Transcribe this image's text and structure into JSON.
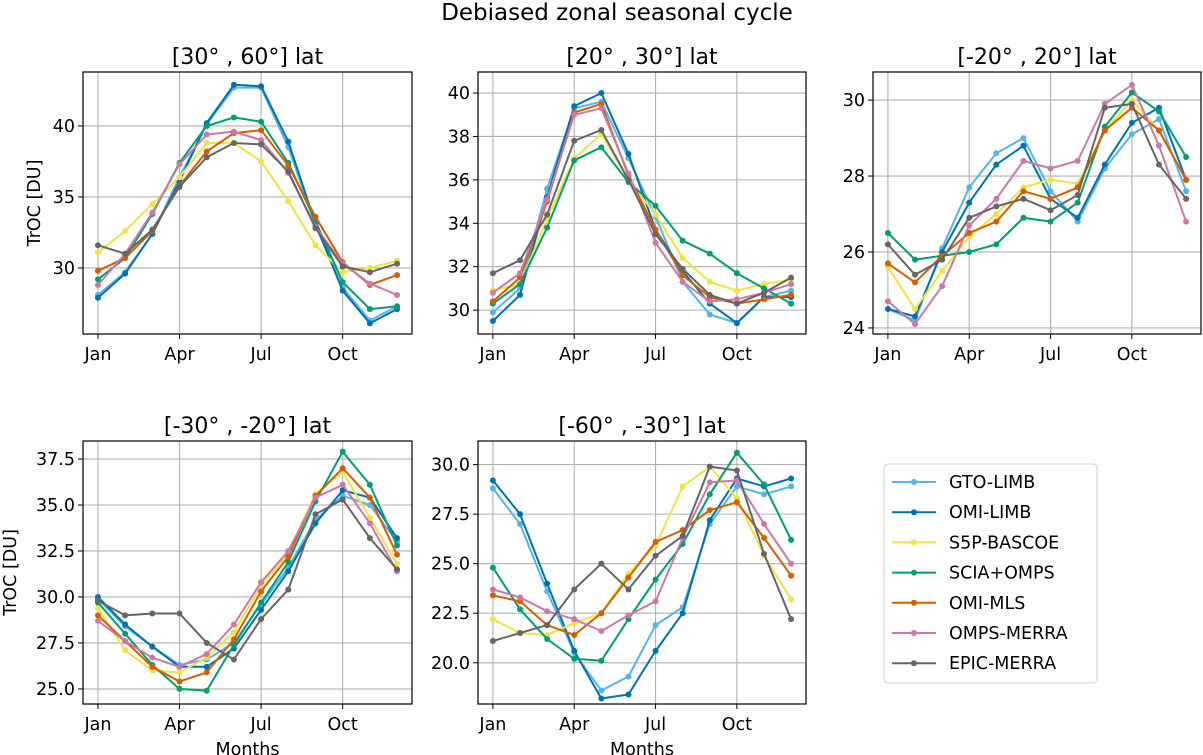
{
  "figure": {
    "suptitle": "Debiased zonal seasonal cycle"
  },
  "legend": {
    "placement": "lower-right empty cell",
    "entries": [
      {
        "name": "GTO-LIMB",
        "color": "#56b4e9"
      },
      {
        "name": "OMI-LIMB",
        "color": "#0072b2"
      },
      {
        "name": "S5P-BASCOE",
        "color": "#f0e442"
      },
      {
        "name": "SCIA+OMPS",
        "color": "#009e73"
      },
      {
        "name": "OMI-MLS",
        "color": "#d55e00"
      },
      {
        "name": "OMPS-MERRA",
        "color": "#cc79a7"
      },
      {
        "name": "EPIC-MERRA",
        "color": "#666666"
      }
    ]
  },
  "chart_data": [
    {
      "type": "line",
      "title": "[30° , 60°] lat",
      "xlabel": "",
      "ylabel": "TrOC [DU]",
      "x": [
        1,
        2,
        3,
        4,
        5,
        6,
        7,
        8,
        9,
        10,
        11,
        12
      ],
      "xticks": [
        1,
        4,
        7,
        10
      ],
      "xticklabels": [
        "Jan",
        "Apr",
        "Jul",
        "Oct"
      ],
      "xlim": [
        0.45,
        12.55
      ],
      "ylim": [
        25.35,
        43.8
      ],
      "yticks": [
        30,
        35,
        40
      ],
      "yticklabels": [
        "30",
        "35",
        "40"
      ],
      "grid": true,
      "series": [
        {
          "name": "GTO-LIMB",
          "values": [
            28.1,
            29.7,
            32.4,
            36.4,
            40.1,
            42.7,
            42.7,
            38.5,
            33.0,
            28.6,
            26.3,
            27.3
          ]
        },
        {
          "name": "OMI-LIMB",
          "values": [
            27.9,
            29.6,
            32.4,
            36.1,
            40.2,
            42.9,
            42.8,
            38.9,
            33.1,
            28.4,
            26.1,
            27.1
          ]
        },
        {
          "name": "S5P-BASCOE",
          "values": [
            31.1,
            32.6,
            34.5,
            36.4,
            38.8,
            38.8,
            37.5,
            34.7,
            31.6,
            29.7,
            30.0,
            30.5
          ]
        },
        {
          "name": "SCIA+OMPS",
          "values": [
            29.2,
            30.7,
            33.8,
            37.4,
            40.0,
            40.6,
            40.3,
            37.4,
            33.3,
            29.0,
            27.1,
            27.3
          ]
        },
        {
          "name": "OMI-MLS",
          "values": [
            29.8,
            30.7,
            32.6,
            35.8,
            38.2,
            39.5,
            39.7,
            37.2,
            33.6,
            30.4,
            28.8,
            29.5
          ]
        },
        {
          "name": "OMPS-MERRA",
          "values": [
            28.8,
            31.0,
            33.9,
            37.3,
            39.4,
            39.6,
            39.0,
            36.7,
            32.9,
            30.3,
            28.9,
            28.1
          ]
        },
        {
          "name": "EPIC-MERRA",
          "values": [
            31.6,
            31.0,
            32.7,
            35.7,
            37.8,
            38.8,
            38.7,
            36.8,
            32.8,
            30.1,
            29.7,
            30.3
          ]
        }
      ]
    },
    {
      "type": "line",
      "title": "[20° , 30°] lat",
      "xlabel": "",
      "ylabel": "",
      "x": [
        1,
        2,
        3,
        4,
        5,
        6,
        7,
        8,
        9,
        10,
        11,
        12
      ],
      "xticks": [
        1,
        4,
        7,
        10
      ],
      "xticklabels": [
        "Jan",
        "Apr",
        "Jul",
        "Oct"
      ],
      "xlim": [
        0.45,
        12.55
      ],
      "ylim": [
        28.9,
        40.97
      ],
      "yticks": [
        30,
        32,
        34,
        36,
        38,
        40
      ],
      "yticklabels": [
        "30",
        "32",
        "34",
        "36",
        "38",
        "40"
      ],
      "grid": true,
      "series": [
        {
          "name": "GTO-LIMB",
          "values": [
            29.9,
            31.0,
            35.6,
            39.3,
            39.6,
            37.0,
            34.3,
            31.3,
            29.8,
            29.4,
            30.6,
            30.9
          ]
        },
        {
          "name": "OMI-LIMB",
          "values": [
            29.5,
            30.7,
            35.2,
            39.4,
            40.0,
            37.2,
            33.7,
            31.8,
            30.3,
            29.4,
            30.6,
            30.6
          ]
        },
        {
          "name": "S5P-BASCOE",
          "values": [
            30.9,
            31.2,
            34.2,
            37.0,
            38.1,
            36.0,
            34.4,
            32.4,
            31.3,
            30.9,
            31.2,
            31.4
          ]
        },
        {
          "name": "SCIA+OMPS",
          "values": [
            30.3,
            31.2,
            33.8,
            36.9,
            37.5,
            35.9,
            34.8,
            33.2,
            32.6,
            31.7,
            31.0,
            30.3
          ]
        },
        {
          "name": "OMI-MLS",
          "values": [
            30.4,
            31.5,
            35.0,
            39.1,
            39.5,
            36.2,
            33.7,
            31.6,
            30.6,
            30.3,
            30.5,
            30.7
          ]
        },
        {
          "name": "OMPS-MERRA",
          "values": [
            30.8,
            31.7,
            35.1,
            39.0,
            39.3,
            36.3,
            33.1,
            31.3,
            30.4,
            30.5,
            30.8,
            31.2
          ]
        },
        {
          "name": "EPIC-MERRA",
          "values": [
            31.7,
            32.3,
            34.4,
            37.8,
            38.3,
            36.0,
            33.5,
            31.9,
            30.7,
            30.3,
            30.8,
            31.5
          ]
        }
      ]
    },
    {
      "type": "line",
      "title": "[-20° , 20°] lat",
      "xlabel": "",
      "ylabel": "",
      "x": [
        1,
        2,
        3,
        4,
        5,
        6,
        7,
        8,
        9,
        10,
        11,
        12
      ],
      "xticks": [
        1,
        4,
        7,
        10
      ],
      "xticklabels": [
        "Jan",
        "Apr",
        "Jul",
        "Oct"
      ],
      "xlim": [
        0.45,
        12.55
      ],
      "ylim": [
        23.84,
        30.74
      ],
      "yticks": [
        24,
        26,
        28,
        30
      ],
      "yticklabels": [
        "24",
        "26",
        "28",
        "30"
      ],
      "grid": true,
      "series": [
        {
          "name": "GTO-LIMB",
          "values": [
            24.5,
            24.2,
            26.1,
            27.7,
            28.6,
            29.0,
            27.6,
            26.8,
            28.2,
            29.1,
            29.5,
            27.6
          ]
        },
        {
          "name": "OMI-LIMB",
          "values": [
            24.5,
            24.3,
            26.0,
            27.3,
            28.3,
            28.8,
            27.4,
            26.9,
            28.3,
            29.4,
            29.8,
            27.9
          ]
        },
        {
          "name": "S5P-BASCOE",
          "values": [
            25.6,
            24.5,
            25.5,
            26.4,
            27.0,
            27.7,
            27.9,
            27.8,
            29.2,
            30.0,
            29.2,
            27.9
          ]
        },
        {
          "name": "SCIA+OMPS",
          "values": [
            26.5,
            25.8,
            25.9,
            26.0,
            26.2,
            26.9,
            26.8,
            27.3,
            29.3,
            30.2,
            29.7,
            28.5
          ]
        },
        {
          "name": "OMI-MLS",
          "values": [
            25.7,
            25.2,
            25.9,
            26.5,
            26.8,
            27.6,
            27.4,
            27.7,
            29.2,
            29.8,
            29.2,
            27.9
          ]
        },
        {
          "name": "OMPS-MERRA",
          "values": [
            24.7,
            24.1,
            25.1,
            26.7,
            27.4,
            28.4,
            28.2,
            28.4,
            29.9,
            30.4,
            28.8,
            26.8
          ]
        },
        {
          "name": "EPIC-MERRA",
          "values": [
            26.2,
            25.4,
            25.8,
            26.9,
            27.2,
            27.4,
            27.1,
            27.5,
            29.8,
            29.9,
            28.3,
            27.4
          ]
        }
      ]
    },
    {
      "type": "line",
      "title": "[-30° , -20°] lat",
      "xlabel": "Months",
      "ylabel": "TrOC [DU]",
      "x": [
        1,
        2,
        3,
        4,
        5,
        6,
        7,
        8,
        9,
        10,
        11,
        12
      ],
      "xticks": [
        1,
        4,
        7,
        10
      ],
      "xticklabels": [
        "Jan",
        "Apr",
        "Jul",
        "Oct"
      ],
      "xlim": [
        0.45,
        12.55
      ],
      "ylim": [
        24.18,
        38.48
      ],
      "yticks": [
        25.0,
        27.5,
        30.0,
        32.5,
        35.0,
        37.5
      ],
      "yticklabels": [
        "25.0",
        "27.5",
        "30.0",
        "32.5",
        "35.0",
        "37.5"
      ],
      "grid": true,
      "series": [
        {
          "name": "GTO-LIMB",
          "values": [
            29.9,
            28.4,
            27.3,
            26.3,
            26.6,
            27.5,
            29.6,
            31.6,
            34.2,
            35.5,
            35.0,
            33.0
          ]
        },
        {
          "name": "OMI-LIMB",
          "values": [
            30.0,
            28.5,
            27.3,
            26.2,
            26.2,
            27.2,
            29.3,
            31.4,
            34.0,
            35.8,
            35.4,
            33.2
          ]
        },
        {
          "name": "S5P-BASCOE",
          "values": [
            29.4,
            27.1,
            26.0,
            25.9,
            26.7,
            28.1,
            30.6,
            32.4,
            35.6,
            36.8,
            34.3,
            31.8
          ]
        },
        {
          "name": "SCIA+OMPS",
          "values": [
            29.7,
            28.0,
            26.3,
            25.0,
            24.9,
            27.4,
            29.7,
            31.9,
            35.2,
            37.9,
            36.1,
            32.8
          ]
        },
        {
          "name": "OMI-MLS",
          "values": [
            29.0,
            27.6,
            26.2,
            25.4,
            25.9,
            27.7,
            30.3,
            32.2,
            35.5,
            37.0,
            35.4,
            32.3
          ]
        },
        {
          "name": "OMPS-MERRA",
          "values": [
            28.7,
            27.6,
            26.7,
            26.2,
            26.9,
            28.5,
            30.8,
            32.5,
            35.4,
            36.1,
            34.0,
            31.4
          ]
        },
        {
          "name": "EPIC-MERRA",
          "values": [
            29.8,
            29.0,
            29.1,
            29.1,
            27.5,
            26.6,
            28.8,
            30.4,
            34.5,
            35.3,
            33.2,
            31.5
          ]
        }
      ]
    },
    {
      "type": "line",
      "title": "[-60° , -30°] lat",
      "xlabel": "Months",
      "ylabel": "",
      "x": [
        1,
        2,
        3,
        4,
        5,
        6,
        7,
        8,
        9,
        10,
        11,
        12
      ],
      "xticks": [
        1,
        4,
        7,
        10
      ],
      "xticklabels": [
        "Jan",
        "Apr",
        "Jul",
        "Oct"
      ],
      "xlim": [
        0.45,
        12.55
      ],
      "ylim": [
        17.92,
        31.19
      ],
      "yticks": [
        20.0,
        22.5,
        25.0,
        27.5,
        30.0
      ],
      "yticklabels": [
        "20.0",
        "22.5",
        "25.0",
        "27.5",
        "30.0"
      ],
      "grid": true,
      "series": [
        {
          "name": "GTO-LIMB",
          "values": [
            28.8,
            27.0,
            23.6,
            20.5,
            18.6,
            19.3,
            21.9,
            22.8,
            27.0,
            28.9,
            28.5,
            28.9
          ]
        },
        {
          "name": "OMI-LIMB",
          "values": [
            29.2,
            27.5,
            24.0,
            20.6,
            18.2,
            18.4,
            20.6,
            22.5,
            27.2,
            29.3,
            28.9,
            29.3
          ]
        },
        {
          "name": "S5P-BASCOE",
          "values": [
            22.2,
            21.5,
            21.4,
            22.0,
            22.5,
            24.5,
            25.9,
            28.9,
            29.9,
            28.3,
            25.4,
            23.2
          ]
        },
        {
          "name": "SCIA+OMPS",
          "values": [
            24.8,
            22.7,
            21.2,
            20.2,
            20.1,
            22.2,
            24.2,
            26.0,
            28.5,
            30.6,
            29.0,
            26.2
          ]
        },
        {
          "name": "OMI-MLS",
          "values": [
            23.4,
            23.1,
            21.9,
            21.4,
            22.5,
            24.3,
            26.1,
            26.7,
            27.7,
            28.1,
            26.3,
            24.4
          ]
        },
        {
          "name": "OMPS-MERRA",
          "values": [
            23.7,
            23.3,
            22.6,
            22.2,
            21.6,
            22.4,
            23.1,
            26.3,
            29.1,
            29.2,
            27.0,
            25.0
          ]
        },
        {
          "name": "EPIC-MERRA",
          "values": [
            21.1,
            21.5,
            21.9,
            23.7,
            25.0,
            23.7,
            25.4,
            26.4,
            29.9,
            29.7,
            25.5,
            22.2
          ]
        }
      ]
    }
  ]
}
